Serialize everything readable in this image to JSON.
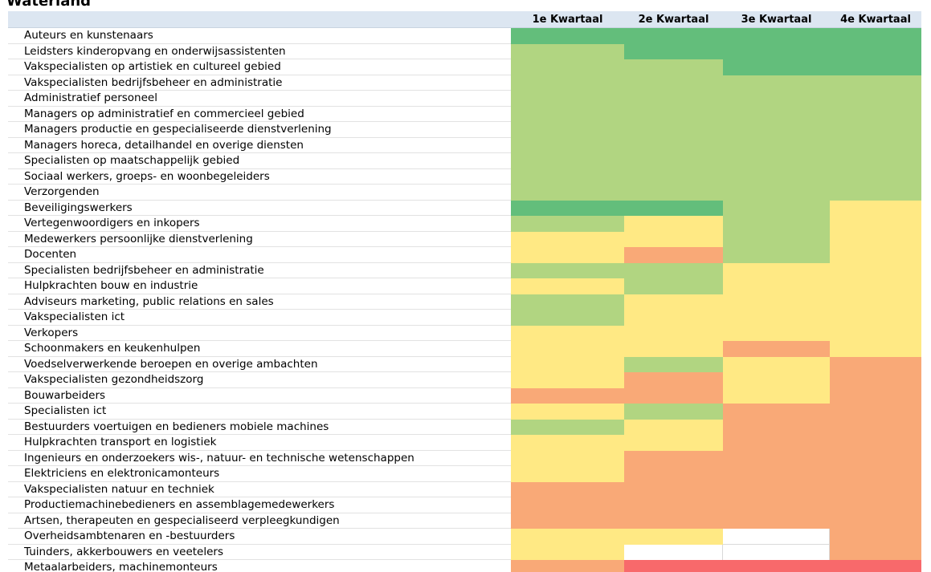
{
  "header": {
    "title": "Waterland"
  },
  "table": {
    "columns": [
      "1e Kwartaal",
      "2e Kwartaal",
      "3e Kwartaal",
      "4e Kwartaal"
    ],
    "rows": [
      {
        "label": "Auteurs en kunstenaars",
        "colors": [
          "#63be7b",
          "#63be7b",
          "#63be7b",
          "#63be7b"
        ]
      },
      {
        "label": "Leidsters kinderopvang en onderwijsassistenten",
        "colors": [
          "#b1d581",
          "#63be7b",
          "#63be7b",
          "#63be7b"
        ]
      },
      {
        "label": "Vakspecialisten op artistiek en cultureel gebied",
        "colors": [
          "#b1d581",
          "#b1d581",
          "#63be7b",
          "#63be7b"
        ]
      },
      {
        "label": "Vakspecialisten bedrijfsbeheer en administratie",
        "colors": [
          "#b1d581",
          "#b1d581",
          "#b1d581",
          "#b1d581"
        ]
      },
      {
        "label": "Administratief personeel",
        "colors": [
          "#b1d581",
          "#b1d581",
          "#b1d581",
          "#b1d581"
        ]
      },
      {
        "label": "Managers op administratief en commercieel gebied",
        "colors": [
          "#b1d581",
          "#b1d581",
          "#b1d581",
          "#b1d581"
        ]
      },
      {
        "label": "Managers productie en gespecialiseerde dienstverlening",
        "colors": [
          "#b1d581",
          "#b1d581",
          "#b1d581",
          "#b1d581"
        ]
      },
      {
        "label": "Managers horeca, detailhandel en overige diensten",
        "colors": [
          "#b1d581",
          "#b1d581",
          "#b1d581",
          "#b1d581"
        ]
      },
      {
        "label": "Specialisten op maatschappelijk gebied",
        "colors": [
          "#b1d581",
          "#b1d581",
          "#b1d581",
          "#b1d581"
        ]
      },
      {
        "label": "Sociaal werkers, groeps- en woonbegeleiders",
        "colors": [
          "#b1d581",
          "#b1d581",
          "#b1d581",
          "#b1d581"
        ]
      },
      {
        "label": "Verzorgenden",
        "colors": [
          "#b1d581",
          "#b1d581",
          "#b1d581",
          "#b1d581"
        ]
      },
      {
        "label": "Beveiligingswerkers",
        "colors": [
          "#63be7b",
          "#63be7b",
          "#b1d581",
          "#ffe984"
        ]
      },
      {
        "label": "Vertegenwoordigers en inkopers",
        "colors": [
          "#b1d581",
          "#ffe984",
          "#b1d581",
          "#ffe984"
        ]
      },
      {
        "label": "Medewerkers persoonlijke dienstverlening",
        "colors": [
          "#ffe984",
          "#ffe984",
          "#b1d581",
          "#ffe984"
        ]
      },
      {
        "label": "Docenten",
        "colors": [
          "#ffe984",
          "#f9a977",
          "#b1d581",
          "#ffe984"
        ]
      },
      {
        "label": "Specialisten bedrijfsbeheer en administratie",
        "colors": [
          "#b1d581",
          "#b1d581",
          "#ffe984",
          "#ffe984"
        ]
      },
      {
        "label": "Hulpkrachten bouw en industrie",
        "colors": [
          "#ffe984",
          "#b1d581",
          "#ffe984",
          "#ffe984"
        ]
      },
      {
        "label": "Adviseurs marketing, public relations en sales",
        "colors": [
          "#b1d581",
          "#ffe984",
          "#ffe984",
          "#ffe984"
        ]
      },
      {
        "label": "Vakspecialisten ict",
        "colors": [
          "#b1d581",
          "#ffe984",
          "#ffe984",
          "#ffe984"
        ]
      },
      {
        "label": "Verkopers",
        "colors": [
          "#ffe984",
          "#ffe984",
          "#ffe984",
          "#ffe984"
        ]
      },
      {
        "label": "Schoonmakers en keukenhulpen",
        "colors": [
          "#ffe984",
          "#ffe984",
          "#f9a977",
          "#ffe984"
        ]
      },
      {
        "label": "Voedselverwerkende beroepen en overige ambachten",
        "colors": [
          "#ffe984",
          "#b1d581",
          "#ffe984",
          "#f9a977"
        ]
      },
      {
        "label": "Vakspecialisten gezondheidszorg",
        "colors": [
          "#ffe984",
          "#f9a977",
          "#ffe984",
          "#f9a977"
        ]
      },
      {
        "label": "Bouwarbeiders",
        "colors": [
          "#f9a977",
          "#f9a977",
          "#ffe984",
          "#f9a977"
        ]
      },
      {
        "label": "Specialisten ict",
        "colors": [
          "#ffe984",
          "#b1d581",
          "#f9a977",
          "#f9a977"
        ]
      },
      {
        "label": "Bestuurders voertuigen en bedieners mobiele machines",
        "colors": [
          "#b1d581",
          "#ffe984",
          "#f9a977",
          "#f9a977"
        ]
      },
      {
        "label": "Hulpkrachten transport en logistiek",
        "colors": [
          "#ffe984",
          "#ffe984",
          "#f9a977",
          "#f9a977"
        ]
      },
      {
        "label": "Ingenieurs en onderzoekers wis-, natuur- en technische wetenschappen",
        "colors": [
          "#ffe984",
          "#f9a977",
          "#f9a977",
          "#f9a977"
        ]
      },
      {
        "label": "Elektriciens en elektronicamonteurs",
        "colors": [
          "#ffe984",
          "#f9a977",
          "#f9a977",
          "#f9a977"
        ]
      },
      {
        "label": "Vakspecialisten natuur en techniek",
        "colors": [
          "#f9a977",
          "#f9a977",
          "#f9a977",
          "#f9a977"
        ]
      },
      {
        "label": "Productiemachinebedieners en assemblagemedewerkers",
        "colors": [
          "#f9a977",
          "#f9a977",
          "#f9a977",
          "#f9a977"
        ]
      },
      {
        "label": "Artsen, therapeuten en gespecialiseerd verpleegkundigen",
        "colors": [
          "#f9a977",
          "#f9a977",
          "#f9a977",
          "#f9a977"
        ]
      },
      {
        "label": "Overheidsambtenaren en -bestuurders",
        "colors": [
          "#ffe984",
          "#ffe984",
          "#ffffff",
          "#f9a977"
        ]
      },
      {
        "label": "Tuinders, akkerbouwers en veetelers",
        "colors": [
          "#ffe984",
          "#ffffff",
          "#ffffff",
          "#f9a977"
        ]
      },
      {
        "label": "Metaalarbeiders, machinemonteurs",
        "colors": [
          "#f9a977",
          "#f8696b",
          "#f8696b",
          "#f8696b"
        ]
      }
    ]
  }
}
